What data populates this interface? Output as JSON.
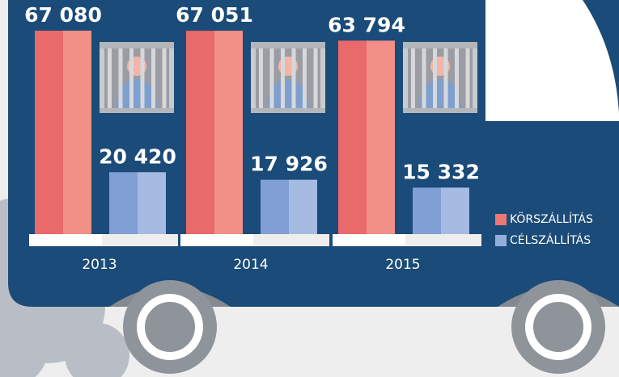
{
  "chart_data": {
    "type": "bar",
    "categories": [
      "2013",
      "2014",
      "2015"
    ],
    "series": [
      {
        "name": "KÖRSZÁLLÍTÁS",
        "color": "#ec7774",
        "values": [
          67080,
          67051,
          63794
        ],
        "value_labels": [
          "67 080",
          "67 051",
          "63 794"
        ]
      },
      {
        "name": "CÉLSZÁLLÍTÁS",
        "color": "#93aedb",
        "values": [
          20420,
          17926,
          15332
        ],
        "value_labels": [
          "20 420",
          "17 926",
          "15 332"
        ]
      }
    ],
    "legend": "right"
  }
}
